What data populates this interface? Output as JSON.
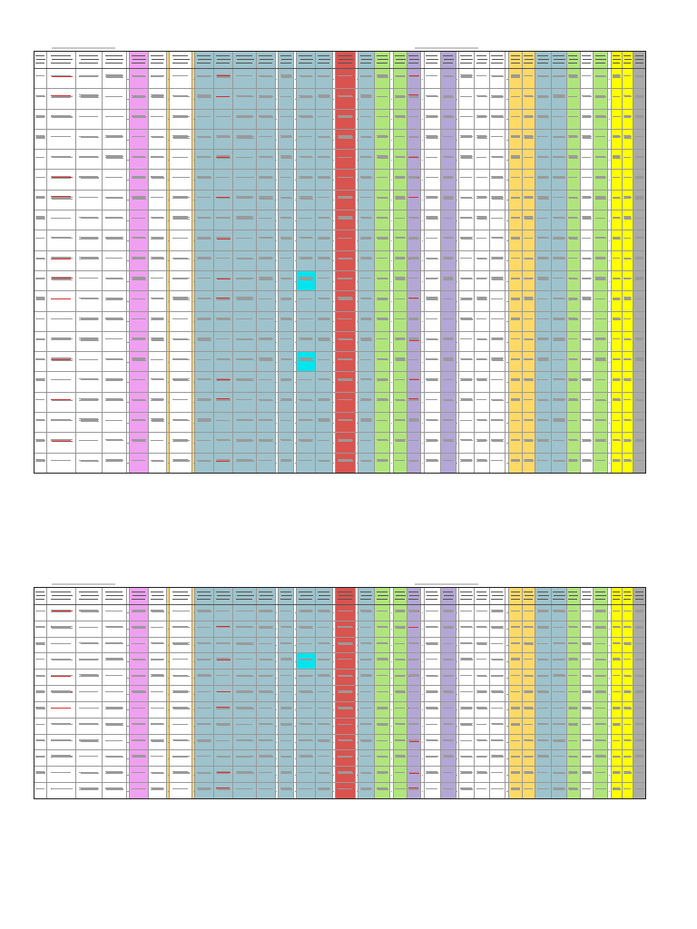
{
  "document": {
    "type": "spreadsheet-print-preview",
    "pages": [
      {
        "page_number": 1,
        "row_count": 20
      },
      {
        "page_number": 2,
        "row_count": 12
      }
    ]
  },
  "columns": {
    "colors": [
      "#ffffff",
      "#ffffff",
      "#ffffff",
      "#ffffff",
      "#ffffff",
      "#f0a0f0",
      "#ffffff",
      "#ffd966",
      "#ffffff",
      "#ffd966",
      "#9ec3cc",
      "#9ec3cc",
      "#9ec3cc",
      "#9ec3cc",
      "#ffffff",
      "#9ec3cc",
      "#ffffff",
      "#9ec3cc",
      "#9ec3cc",
      "#ffffff",
      "#d9534f",
      "#ffffff",
      "#9ec3cc",
      "#b0e57c",
      "#ffffff",
      "#b0e57c",
      "#b4a7d6",
      "#ffffff",
      "#ffffff",
      "#b4a7d6",
      "#ffffff",
      "#ffffff",
      "#ffffff",
      "#ffffff",
      "#ffffff",
      "#ffd966",
      "#ffd966",
      "#9ec3cc",
      "#9ec3cc",
      "#b0e57c",
      "#ffffff",
      "#b0e57c",
      "#ffffff",
      "#ffff00",
      "#ffff00",
      "#aaaaaa"
    ],
    "highlights": {
      "cyan": "#00e5ee",
      "red_text": "#d73030"
    }
  }
}
